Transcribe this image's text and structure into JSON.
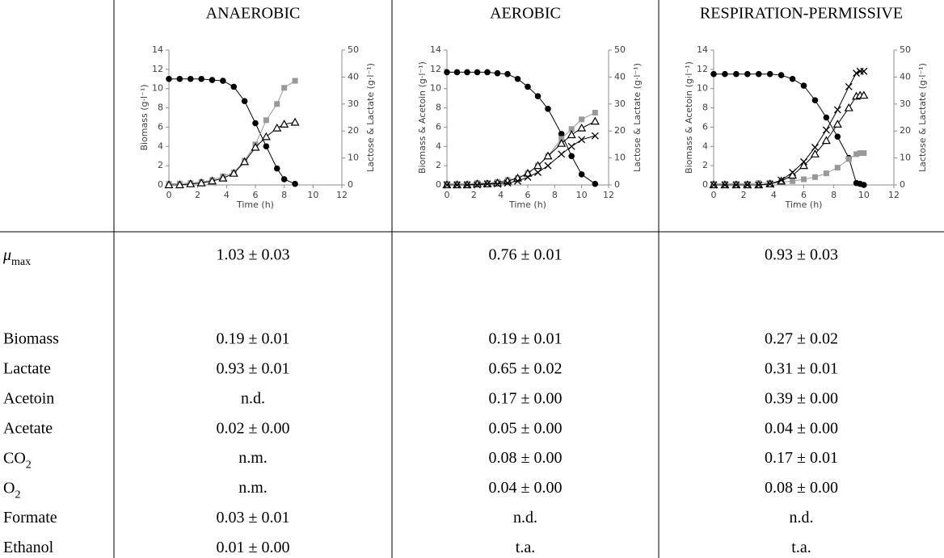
{
  "table": {
    "columns": [
      "ANAEROBIC",
      "AEROBIC",
      "RESPIRATION-PERMISSIVE"
    ],
    "rows": [
      {
        "label": {
          "text": "μ",
          "subscript": "max",
          "italic": true
        },
        "cells": [
          "1.03 ± 0.03",
          "0.76 ± 0.01",
          "0.93 ± 0.03"
        ]
      },
      {
        "label": "Biomass",
        "cells": [
          "0.19 ± 0.01",
          "0.19 ± 0.01",
          "0.27 ± 0.02"
        ]
      },
      {
        "label": "Lactate",
        "cells": [
          "0.93 ± 0.01",
          "0.65 ± 0.02",
          "0.31 ± 0.01"
        ]
      },
      {
        "label": "Acetoin",
        "cells": [
          "n.d.",
          "0.17 ± 0.00",
          "0.39 ± 0.00"
        ]
      },
      {
        "label": "Acetate",
        "cells": [
          "0.02 ± 0.00",
          "0.05 ± 0.00",
          "0.04 ± 0.00"
        ]
      },
      {
        "label": {
          "text": "CO",
          "subscript": "2"
        },
        "cells": [
          "n.m.",
          "0.08 ± 0.00",
          "0.17 ± 0.01"
        ]
      },
      {
        "label": {
          "text": "O",
          "subscript": "2"
        },
        "cells": [
          "n.m.",
          "0.04 ± 0.00",
          "0.08 ± 0.00"
        ]
      },
      {
        "label": "Formate",
        "cells": [
          "0.03 ± 0.01",
          "n.d.",
          "n.d."
        ]
      },
      {
        "label": "Ethanol",
        "cells": [
          "0.01 ± 0.00",
          "t.a.",
          "t.a."
        ]
      }
    ]
  },
  "chart_data": [
    {
      "type": "line",
      "xlabel": "Time (h)",
      "ylabel": "Biomass (g·l⁻¹)",
      "y2label": "Lactose & Lactate (g·l⁻¹)",
      "x": [
        0,
        0.75,
        1.5,
        2.25,
        3,
        3.75,
        4.5,
        5.25,
        6,
        6.75,
        7.5,
        8,
        8.75
      ],
      "xlim": [
        0,
        12
      ],
      "xticks": [
        0,
        2,
        4,
        6,
        8,
        10,
        12
      ],
      "ylim": [
        0,
        14
      ],
      "yticks": [
        0,
        2,
        4,
        6,
        8,
        10,
        12,
        14
      ],
      "y2lim": [
        0,
        50
      ],
      "y2ticks": [
        0,
        10,
        20,
        30,
        40,
        50
      ],
      "series": [
        {
          "color": "#000000",
          "marker": "circle",
          "axis": "y2",
          "values": [
            39.3,
            39.3,
            39.3,
            39.3,
            38.9,
            38.6,
            36.4,
            31.1,
            22.9,
            14.3,
            6.1,
            2.1,
            0.4
          ]
        },
        {
          "color": "#999999",
          "marker": "square",
          "axis": "y2",
          "values": [
            0.4,
            0.5,
            0.7,
            1.1,
            1.8,
            3.2,
            4.6,
            9,
            15,
            24,
            30,
            36,
            38.6
          ]
        },
        {
          "color": "#000000",
          "marker": "triangle",
          "values": [
            0,
            0,
            0.1,
            0.2,
            0.4,
            0.7,
            1.2,
            2.4,
            3.9,
            5,
            5.9,
            6.3,
            6.5
          ]
        }
      ]
    },
    {
      "type": "line",
      "xlabel": "Time (h)",
      "ylabel": "Biomass & Acetoin (g·l⁻¹)",
      "y2label": "Lactose & Lactate (g·l⁻¹)",
      "x": [
        0,
        0.75,
        1.5,
        2.25,
        3,
        3.75,
        4.5,
        5.25,
        6,
        6.75,
        7.5,
        8.5,
        9.25,
        10,
        11
      ],
      "xlim": [
        0,
        12
      ],
      "xticks": [
        0,
        2,
        4,
        6,
        8,
        10,
        12
      ],
      "ylim": [
        0,
        14
      ],
      "yticks": [
        0,
        2,
        4,
        6,
        8,
        10,
        12,
        14
      ],
      "y2lim": [
        0,
        50
      ],
      "y2ticks": [
        0,
        10,
        20,
        30,
        40,
        50
      ],
      "series": [
        {
          "color": "#000000",
          "marker": "circle",
          "axis": "y2",
          "values": [
            41.8,
            41.8,
            41.8,
            41.8,
            41.8,
            41.4,
            41.1,
            39.3,
            36.4,
            32.9,
            28.2,
            18.9,
            10.7,
            3.9,
            0.4
          ]
        },
        {
          "color": "#999999",
          "marker": "square",
          "axis": "y2",
          "values": [
            0.4,
            0.4,
            0.4,
            0.7,
            0.7,
            1.1,
            1.8,
            2.5,
            4.3,
            7.1,
            10.7,
            17.1,
            20.7,
            24.3,
            26.8
          ]
        },
        {
          "color": "#000000",
          "marker": "triangle",
          "values": [
            0,
            0,
            0,
            0.1,
            0.1,
            0.2,
            0.4,
            0.7,
            1.2,
            2,
            3,
            4.3,
            5.2,
            5.9,
            6.6
          ]
        },
        {
          "color": "#000000",
          "marker": "cross",
          "values": [
            0,
            0,
            0,
            0,
            0.1,
            0.1,
            0.2,
            0.4,
            0.8,
            1.3,
            2,
            3.2,
            4,
            4.7,
            5.1
          ]
        }
      ]
    },
    {
      "type": "line",
      "xlabel": "Time (h)",
      "ylabel": "Biomass & Acetoin (g·l⁻¹)",
      "y2label": "Lactose & Lactate (g·l⁻¹)",
      "x": [
        0,
        0.75,
        1.5,
        2.25,
        3,
        3.75,
        4.5,
        5.25,
        6,
        6.75,
        7.5,
        8.25,
        9,
        9.5,
        9.75,
        10
      ],
      "xlim": [
        0,
        12
      ],
      "xticks": [
        0,
        2,
        4,
        6,
        8,
        10,
        12
      ],
      "ylim": [
        0,
        14
      ],
      "yticks": [
        0,
        2,
        4,
        6,
        8,
        10,
        12,
        14
      ],
      "y2lim": [
        0,
        50
      ],
      "y2ticks": [
        0,
        10,
        20,
        30,
        40,
        50
      ],
      "series": [
        {
          "color": "#000000",
          "marker": "circle",
          "axis": "y2",
          "values": [
            41.1,
            41.1,
            41.1,
            41.1,
            41.1,
            41.1,
            40.7,
            39.3,
            36.8,
            31.4,
            25,
            17.9,
            10,
            0.7,
            0.4,
            0
          ]
        },
        {
          "color": "#999999",
          "marker": "square",
          "axis": "y2",
          "values": [
            0.4,
            0.4,
            0.4,
            0.4,
            0.7,
            0.7,
            1.1,
            1.4,
            2.1,
            2.9,
            4.3,
            6.4,
            9.6,
            11.4,
            11.8,
            11.8
          ]
        },
        {
          "color": "#000000",
          "marker": "triangle",
          "values": [
            0,
            0,
            0,
            0,
            0,
            0.1,
            0.4,
            1,
            2,
            3.2,
            4.6,
            6.3,
            8,
            9.2,
            9.3,
            9.3
          ]
        },
        {
          "color": "#000000",
          "marker": "cross",
          "values": [
            0,
            0,
            0,
            0,
            0,
            0.1,
            0.5,
            1.3,
            2.4,
            3.9,
            5.7,
            7.8,
            10.2,
            11.6,
            11.8,
            11.8
          ]
        }
      ]
    }
  ]
}
